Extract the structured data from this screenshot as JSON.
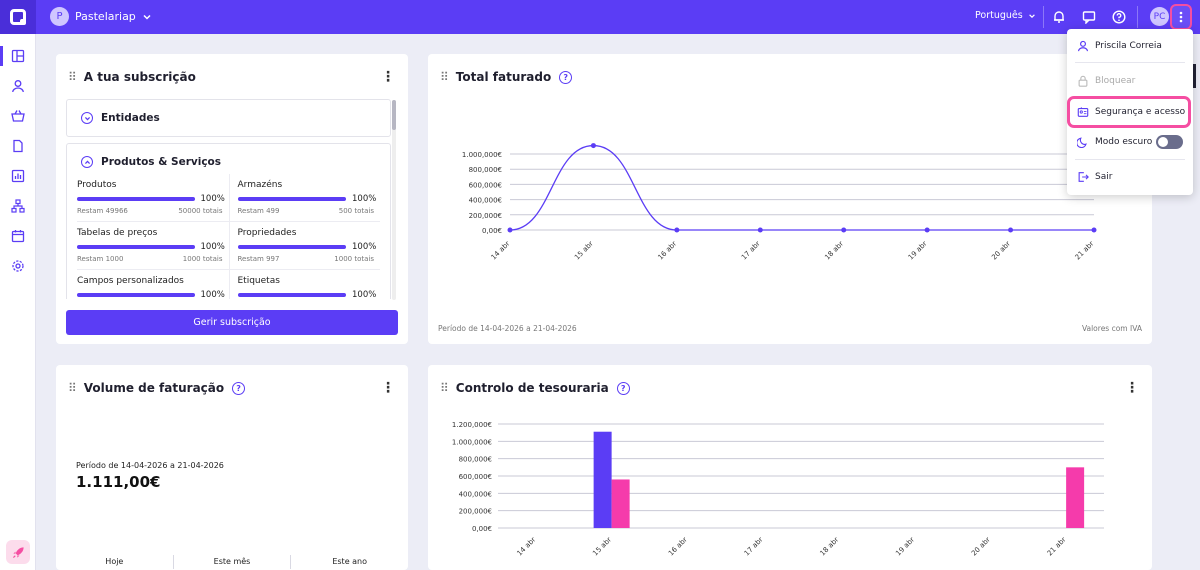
{
  "topbar": {
    "account_initial": "P",
    "account_name": "Pastelariap",
    "language": "Português",
    "user_initials": "PC"
  },
  "colors": {
    "brand": "#5b3df5",
    "accent": "#f54ea2",
    "background": "#ecedf6"
  },
  "sidebar": {
    "icons": [
      "dashboard-icon",
      "user-icon",
      "basket-icon",
      "document-icon",
      "reports-icon",
      "integrations-icon",
      "calendar-icon",
      "settings-icon"
    ]
  },
  "subscription": {
    "title": "A tua subscrição",
    "entities_label": "Entidades",
    "products_label": "Produtos & Serviços",
    "metrics": [
      {
        "label": "Produtos",
        "pct": "100%",
        "fill": 1.0,
        "remaining": "Restam 49966",
        "total": "50000 totais"
      },
      {
        "label": "Armazéns",
        "pct": "100%",
        "fill": 1.0,
        "remaining": "Restam 499",
        "total": "500 totais"
      },
      {
        "label": "Tabelas de preços",
        "pct": "100%",
        "fill": 1.0,
        "remaining": "Restam 1000",
        "total": "1000 totais"
      },
      {
        "label": "Propriedades",
        "pct": "100%",
        "fill": 1.0,
        "remaining": "Restam 997",
        "total": "1000 totais"
      },
      {
        "label": "Campos personalizados",
        "pct": "100%",
        "fill": 1.0,
        "remaining": "",
        "total": ""
      },
      {
        "label": "Etiquetas",
        "pct": "100%",
        "fill": 1.0,
        "remaining": "",
        "total": ""
      }
    ],
    "button": "Gerir subscrição"
  },
  "total": {
    "title": "Total faturado",
    "period": "Período de 14-04-2026 a 21-04-2026",
    "note": "Valores com IVA"
  },
  "volume": {
    "title": "Volume de faturação",
    "period": "Período de 14-04-2026 a 21-04-2026",
    "value": "1.111,00€",
    "tabs": [
      "Hoje",
      "Este mês",
      "Este ano"
    ]
  },
  "treasury": {
    "title": "Controlo de tesouraria"
  },
  "chart_data": [
    {
      "type": "line",
      "categories": [
        "14 abr",
        "15 abr",
        "16 abr",
        "17 abr",
        "18 abr",
        "19 abr",
        "20 abr",
        "21 abr"
      ],
      "values": [
        0,
        1111,
        0,
        0,
        0,
        0,
        0,
        0
      ],
      "yticks": [
        "0,00€",
        "200,000€",
        "400,000€",
        "600,000€",
        "800,000€",
        "1.000,000€"
      ],
      "ylim": [
        0,
        1000
      ],
      "grid": true
    },
    {
      "type": "bar",
      "categories": [
        "14 abr",
        "15 abr",
        "16 abr",
        "17 abr",
        "18 abr",
        "19 abr",
        "20 abr",
        "21 abr"
      ],
      "series": [
        {
          "color": "#5b3df5",
          "values": [
            0,
            1111,
            0,
            0,
            0,
            0,
            0,
            0
          ]
        },
        {
          "color": "#f53bab",
          "values": [
            0,
            560,
            0,
            0,
            0,
            0,
            0,
            700
          ]
        }
      ],
      "yticks": [
        "0,00€",
        "200,000€",
        "400,000€",
        "600,000€",
        "800,000€",
        "1.000,000€",
        "1.200,000€"
      ],
      "ylim": [
        0,
        1200
      ],
      "grid": true
    }
  ],
  "dropdown": {
    "profile": "Priscila Correia",
    "lock": "Bloquear",
    "security": "Segurança e acesso",
    "dark_mode": "Modo escuro",
    "dark_mode_on": false,
    "logout": "Sair"
  }
}
